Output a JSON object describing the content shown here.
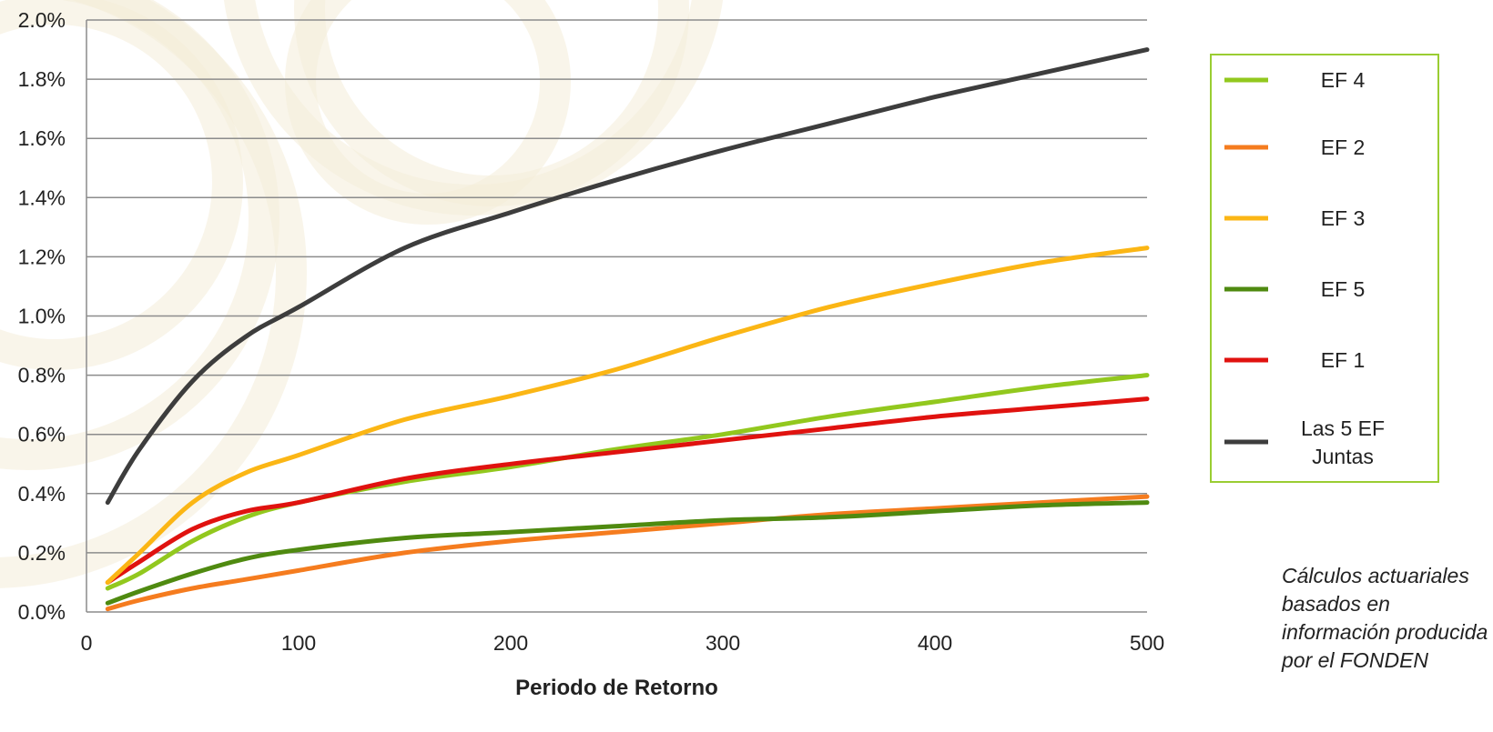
{
  "colors": {
    "background": "#ffffff",
    "watermark": "#f4ecd9",
    "gridline": "#8c8c8c",
    "legend_border": "#9acd32"
  },
  "chart_data": {
    "type": "line",
    "title": "",
    "xlabel": "Periodo de Retorno",
    "ylabel": "",
    "xlim": [
      0,
      500
    ],
    "ylim": [
      0,
      0.02
    ],
    "x_ticks": [
      0,
      100,
      200,
      300,
      400,
      500
    ],
    "y_ticks": [
      0,
      0.002,
      0.004,
      0.006,
      0.008,
      0.01,
      0.012,
      0.014,
      0.016,
      0.018,
      0.02
    ],
    "y_tick_labels": [
      "0.0%",
      "0.2%",
      "0.4%",
      "0.6%",
      "0.8%",
      "1.0%",
      "1.2%",
      "1.4%",
      "1.6%",
      "1.8%",
      "2.0%"
    ],
    "grid": "horizontal",
    "legend_position": "right",
    "x": [
      10,
      25,
      50,
      75,
      100,
      150,
      200,
      250,
      300,
      350,
      400,
      450,
      500
    ],
    "series": [
      {
        "name": "EF 4",
        "color": "#92c81e",
        "values": [
          0.0008,
          0.0013,
          0.0024,
          0.0032,
          0.0037,
          0.0044,
          0.0049,
          0.0055,
          0.006,
          0.0066,
          0.0071,
          0.0076,
          0.008
        ]
      },
      {
        "name": "EF 2",
        "color": "#f57c1f",
        "values": [
          0.0001,
          0.0004,
          0.0008,
          0.0011,
          0.0014,
          0.002,
          0.0024,
          0.0027,
          0.003,
          0.0033,
          0.0035,
          0.0037,
          0.0039
        ]
      },
      {
        "name": "EF 3",
        "color": "#fbb615",
        "values": [
          0.001,
          0.002,
          0.0037,
          0.0047,
          0.0053,
          0.0065,
          0.0073,
          0.0082,
          0.0093,
          0.0103,
          0.0111,
          0.0118,
          0.0123
        ]
      },
      {
        "name": "EF 5",
        "color": "#4f8a10",
        "values": [
          0.0003,
          0.0007,
          0.0013,
          0.0018,
          0.0021,
          0.0025,
          0.0027,
          0.0029,
          0.0031,
          0.0032,
          0.0034,
          0.0036,
          0.0037
        ]
      },
      {
        "name": "EF 1",
        "color": "#e0120f",
        "values": [
          0.001,
          0.0017,
          0.0028,
          0.0034,
          0.0037,
          0.0045,
          0.005,
          0.0054,
          0.0058,
          0.0062,
          0.0066,
          0.0069,
          0.0072
        ]
      },
      {
        "name": "Las 5 EF Juntas",
        "legend_lines": [
          "Las 5 EF",
          "Juntas"
        ],
        "color": "#3d3d3d",
        "values": [
          0.0037,
          0.0055,
          0.0078,
          0.0093,
          0.0103,
          0.0123,
          0.0135,
          0.0146,
          0.0156,
          0.0165,
          0.0174,
          0.0182,
          0.019
        ]
      }
    ]
  },
  "note": "Cálculos actuariales basados en información producida por el FONDEN"
}
